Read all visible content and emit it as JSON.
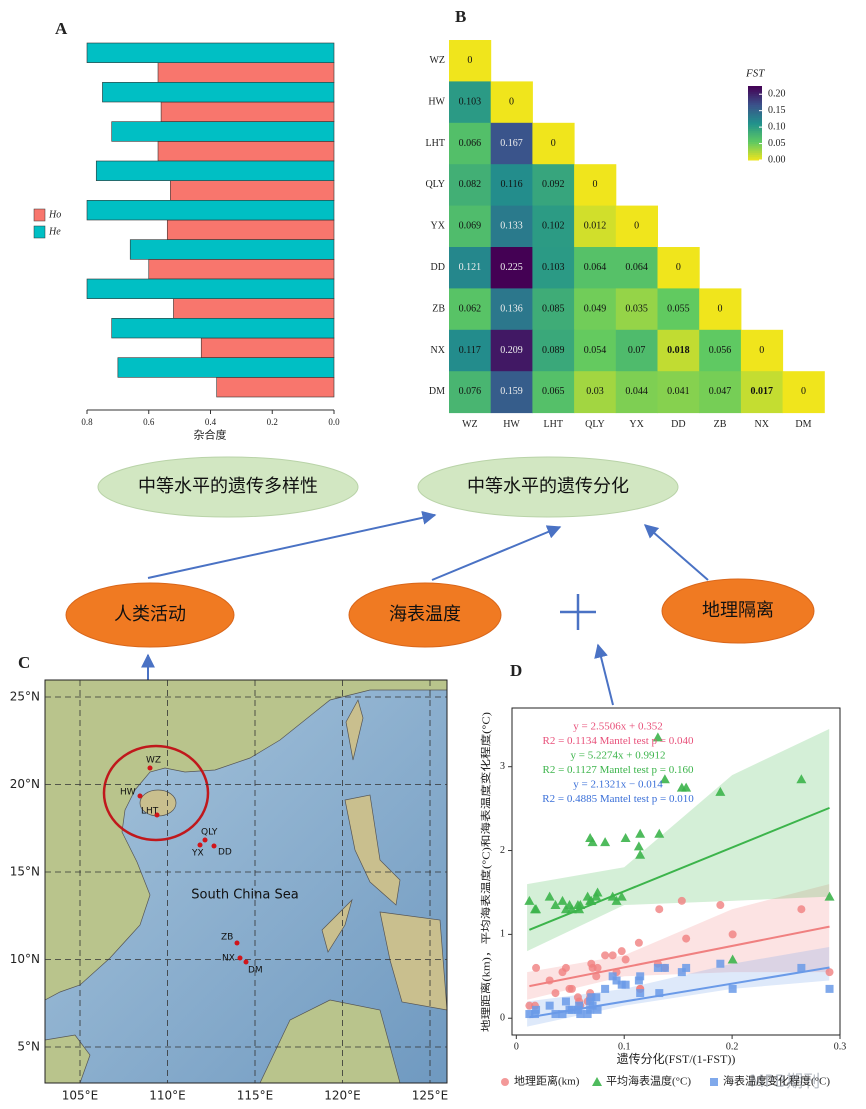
{
  "panels": {
    "a": "A",
    "b": "B",
    "c": "C",
    "d": "D"
  },
  "diagram": {
    "nodes": [
      "中等水平的遗传多样性",
      "中等水平的遗传分化",
      "人类活动",
      "海表温度",
      "地理隔离"
    ]
  },
  "map": {
    "lat_labels": [
      "25°N",
      "20°N",
      "15°N",
      "10°N",
      "5°N"
    ],
    "lon_labels": [
      "105°E",
      "110°E",
      "115°E",
      "120°E",
      "125°E"
    ],
    "sea": "South China Sea",
    "sites": [
      "WZ",
      "HW",
      "LHT",
      "QLY",
      "YX",
      "DD",
      "ZB",
      "NX",
      "DM"
    ]
  },
  "watermark": "MPB期刊",
  "chart_data": [
    {
      "type": "bar",
      "orientation": "horizontal",
      "categories": [
        null,
        null,
        null,
        null,
        null,
        null,
        null,
        null,
        null
      ],
      "series": [
        {
          "name": "Ho",
          "color": "#f8766d",
          "values": [
            0.57,
            0.56,
            0.57,
            0.53,
            0.54,
            0.6,
            0.52,
            0.43,
            0.38
          ]
        },
        {
          "name": "He",
          "color": "#00bfc4",
          "values": [
            0.8,
            0.75,
            0.72,
            0.77,
            0.8,
            0.66,
            0.8,
            0.72,
            0.7
          ]
        }
      ],
      "xlim": [
        0.8,
        0
      ],
      "xticks": [
        0.8,
        0.6,
        0.4,
        0.2,
        {
          "value": 0,
          "label": "0.0"
        }
      ],
      "xlabel": "杂合度",
      "legend": "left"
    },
    {
      "type": "heatmap",
      "x": [
        "WZ",
        "HW",
        "LHT",
        "QLY",
        "YX",
        "DD",
        "ZB",
        "NX",
        "DM"
      ],
      "y": [
        "WZ",
        "HW",
        "LHT",
        "QLY",
        "YX",
        "DD",
        "ZB",
        "NX",
        "DM"
      ],
      "values": [
        [
          0,
          null,
          null,
          null,
          null,
          null,
          null,
          null,
          null
        ],
        [
          0.103,
          0,
          null,
          null,
          null,
          null,
          null,
          null,
          null
        ],
        [
          0.066,
          0.167,
          0,
          null,
          null,
          null,
          null,
          null,
          null
        ],
        [
          0.082,
          0.116,
          0.092,
          0,
          null,
          null,
          null,
          null,
          null
        ],
        [
          0.069,
          0.133,
          0.102,
          0.012,
          0,
          null,
          null,
          null,
          null
        ],
        [
          0.121,
          0.225,
          0.103,
          0.064,
          0.064,
          0,
          null,
          null,
          null
        ],
        [
          0.062,
          0.136,
          0.085,
          0.049,
          0.035,
          0.055,
          0,
          null,
          null
        ],
        [
          0.117,
          0.209,
          0.089,
          0.054,
          0.07,
          0.018,
          0.056,
          0,
          null
        ],
        [
          0.076,
          0.159,
          0.065,
          0.03,
          0.044,
          0.041,
          0.047,
          0.017,
          0
        ]
      ],
      "bold_cells": [
        [
          7,
          5
        ],
        [
          8,
          7
        ]
      ],
      "colorbar_title": "FST",
      "clim": [
        0,
        0.225
      ],
      "cticks": [
        {
          "value": 0.2,
          "label": "0.20"
        },
        {
          "value": 0.15,
          "label": "0.15"
        },
        {
          "value": 0.1,
          "label": "0.10"
        },
        {
          "value": 0.05,
          "label": "0.05"
        },
        {
          "value": 0,
          "label": "0.00"
        }
      ],
      "colors": [
        "#f0e51c",
        "#5ec962",
        "#21918c",
        "#3b528b",
        "#440154"
      ]
    },
    {
      "type": "scatter",
      "x": [
        0.1148,
        0.0707,
        0.2005,
        0.0893,
        0.1312,
        0.1013,
        0.0741,
        0.1534,
        0.1136,
        0.0121,
        0.1377,
        0.2903,
        0.1148,
        0.0684,
        0.0684,
        0.0661,
        0.1574,
        0.0929,
        0.0515,
        0.0363,
        0.0582,
        0.1325,
        0.2642,
        0.0977,
        0.0571,
        0.0753,
        0.0183,
        0.0593,
        0.0823,
        0.1891,
        0.0695,
        0.0309,
        0.046,
        0.0428,
        0.0493,
        0.0173
      ],
      "series": [
        {
          "name": "地理距离(km)",
          "color": "#f08080",
          "marker": "circle",
          "values": [
            0.35,
            0.6,
            1.0,
            0.75,
            0.65,
            0.7,
            0.5,
            1.4,
            0.9,
            0.15,
            0.6,
            0.55,
            0.35,
            0.3,
            0.25,
            0.2,
            0.95,
            0.55,
            0.35,
            0.3,
            0.2,
            1.3,
            1.3,
            0.8,
            0.25,
            0.6,
            0.6,
            0.15,
            0.75,
            1.35,
            0.65,
            0.45,
            0.6,
            0.55,
            0.35,
            0.15
          ],
          "fit": {
            "slope": 2.5506,
            "intercept": 0.352
          },
          "ci": {
            "x": [
              0.01,
              0.1,
              0.2,
              0.29
            ],
            "low": [
              0.22,
              0.5,
              0.55,
              0.55
            ],
            "high": [
              0.55,
              0.75,
              1.3,
              1.6
            ]
          }
        },
        {
          "name": "平均海表温度(°C)",
          "color": "#3cb44b",
          "marker": "triangle",
          "values": [
            2.2,
            2.1,
            0.7,
            1.45,
            3.35,
            2.15,
            1.45,
            2.75,
            2.05,
            1.4,
            2.85,
            1.45,
            1.95,
            2.15,
            1.4,
            1.45,
            2.75,
            1.4,
            1.3,
            1.35,
            1.3,
            2.2,
            2.85,
            1.45,
            1.35,
            1.5,
            1.3,
            1.35,
            2.1,
            2.7,
            1.4,
            1.45,
            1.3,
            1.4,
            1.35,
            1.3
          ],
          "fit": {
            "slope": 5.2274,
            "intercept": 0.9912
          },
          "ci": {
            "x": [
              0.01,
              0.1,
              0.2,
              0.29
            ],
            "low": [
              0.8,
              1.35,
              1.4,
              1.45
            ],
            "high": [
              1.6,
              1.8,
              2.9,
              3.45
            ]
          }
        },
        {
          "name": "海表温度变化程度(°C)",
          "color": "#6a9ae8",
          "marker": "square",
          "values": [
            0.3,
            0.15,
            0.35,
            0.5,
            0.6,
            0.4,
            0.25,
            0.55,
            0.45,
            0.05,
            0.6,
            0.35,
            0.5,
            0.2,
            0.1,
            0.05,
            0.6,
            0.45,
            0.1,
            0.05,
            0.15,
            0.3,
            0.6,
            0.4,
            0.1,
            0.1,
            0.1,
            0.05,
            0.35,
            0.65,
            0.25,
            0.15,
            0.2,
            0.05,
            0.1,
            0.05
          ],
          "fit": {
            "slope": 2.1321,
            "intercept": -0.014
          },
          "ci": {
            "x": [
              0.01,
              0.1,
              0.2,
              0.29
            ],
            "low": [
              -0.1,
              0.15,
              0.35,
              0.45
            ],
            "high": [
              0.2,
              0.35,
              0.65,
              0.85
            ]
          }
        }
      ],
      "annotations": [
        {
          "text": "y = 2.5506x + 0.352",
          "color": "#e8507a"
        },
        {
          "text": "R2 = 0.1134 Mantel test p = 0.040",
          "color": "#e8507a"
        },
        {
          "text": "y = 5.2274x + 0.9912",
          "color": "#3cb44b"
        },
        {
          "text": "R2 = 0.1127 Mantel test p = 0.160",
          "color": "#3cb44b"
        },
        {
          "text": "y = 2.1321x − 0.014",
          "color": "#3a6fd8"
        },
        {
          "text": "R2 = 0.4885 Mantel test p = 0.010",
          "color": "#3a6fd8"
        }
      ],
      "xlim": [
        -0.004,
        0.3
      ],
      "ylim": [
        -0.2,
        3.7
      ],
      "xticks": [
        0,
        0.1,
        0.2,
        0.3
      ],
      "yticks": [
        0,
        1,
        2,
        3
      ],
      "xlabel": "遗传分化(FST/(1-FST))",
      "ylabel": "地理距离(km)，平均海表温度(°C)和海表温度变化程度(°C)",
      "legend": "bottom"
    }
  ]
}
